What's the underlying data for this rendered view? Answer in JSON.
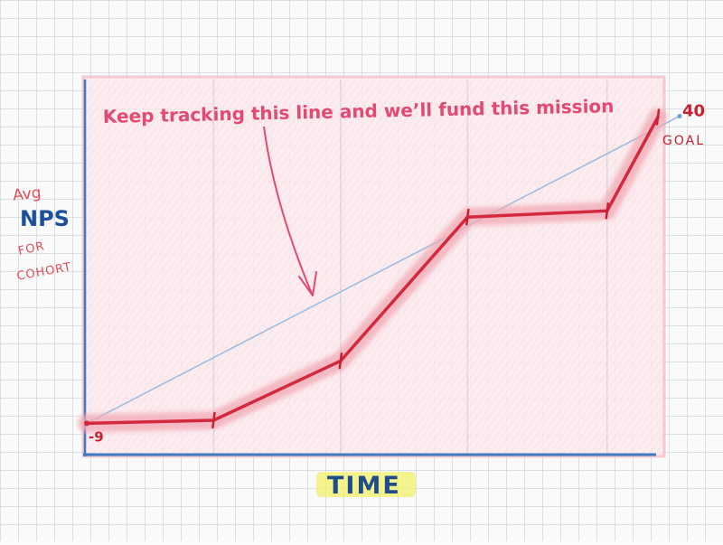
{
  "chart_data": {
    "type": "line",
    "title": "",
    "xlabel": "TIME",
    "ylabel_parts": [
      "Avg",
      "NPS",
      "FOR",
      "COHORT"
    ],
    "ylim": [
      -14,
      46
    ],
    "xlim": [
      0,
      9
    ],
    "grid": true,
    "series": [
      {
        "values_x": [
          0,
          2,
          4,
          6,
          8.2,
          9
        ],
        "values_y": [
          -9,
          -8.5,
          1,
          24,
          25,
          40
        ]
      }
    ],
    "trend_line": {
      "x": [
        0,
        9
      ],
      "y": [
        -9,
        40
      ]
    },
    "tick_points_x": [
      2,
      4,
      6,
      8.2,
      9
    ],
    "start_label": "-9",
    "end_label": "40",
    "goal_label": "GOAL",
    "annotation": "Keep tracking this line and we’ll fund this mission"
  },
  "colors": {
    "series": "#d4283c",
    "series_glow": "#f2a9b4",
    "trend": "#9cbde0",
    "axis": "#3f79c0",
    "plot_fill": "#fbe9ec",
    "annotation": "#e34a73",
    "npsLabel": "#1d4f9a",
    "timeText": "#1f4d8a",
    "timeHighlight": "#f1f06a"
  }
}
